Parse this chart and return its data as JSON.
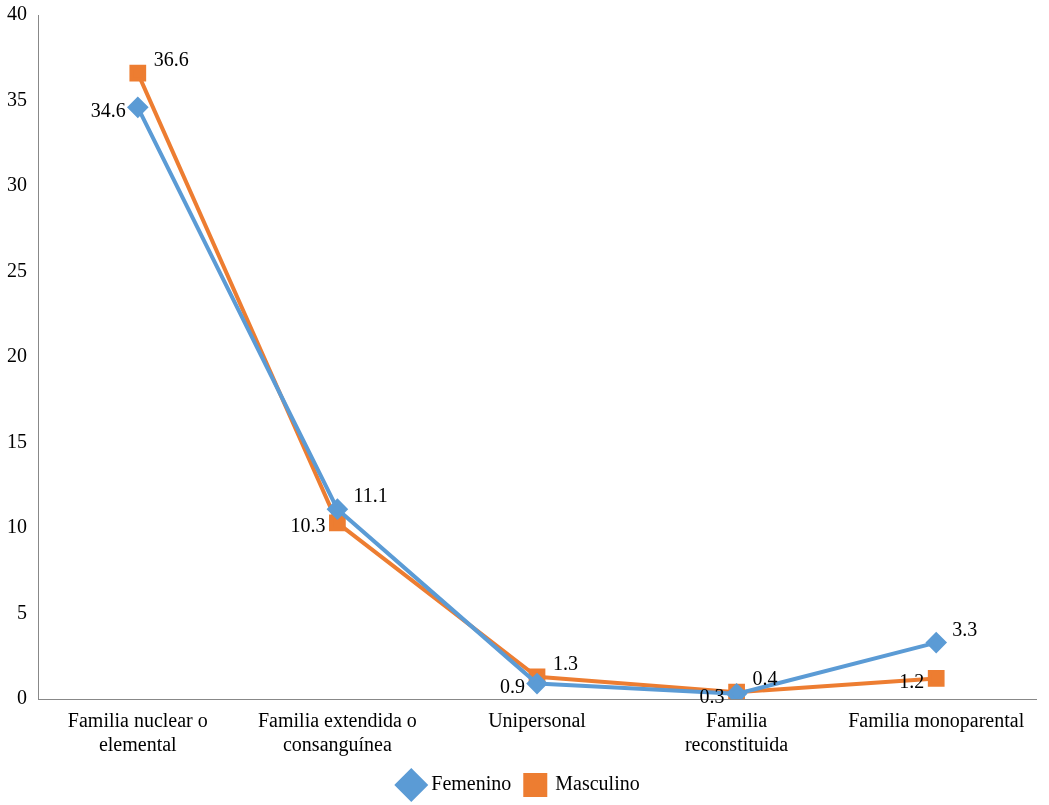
{
  "chart_data": {
    "type": "line",
    "categories": [
      "Familia nuclear o elemental",
      "Familia extendida o consanguínea",
      "Unipersonal",
      "Familia reconstituida",
      "Familia monoparental"
    ],
    "series": [
      {
        "name": "Femenino",
        "color": "#5b9bd5",
        "marker": "diamond",
        "values": [
          34.6,
          11.1,
          0.9,
          0.3,
          3.3
        ]
      },
      {
        "name": "Masculino",
        "color": "#ed7d31",
        "marker": "square",
        "values": [
          36.6,
          10.3,
          1.3,
          0.4,
          1.2
        ]
      }
    ],
    "ylim": [
      0,
      40
    ],
    "yticks": [
      0,
      5,
      10,
      15,
      20,
      25,
      30,
      35,
      40
    ],
    "grid": false,
    "legend": "bottom",
    "data_labels": true
  }
}
